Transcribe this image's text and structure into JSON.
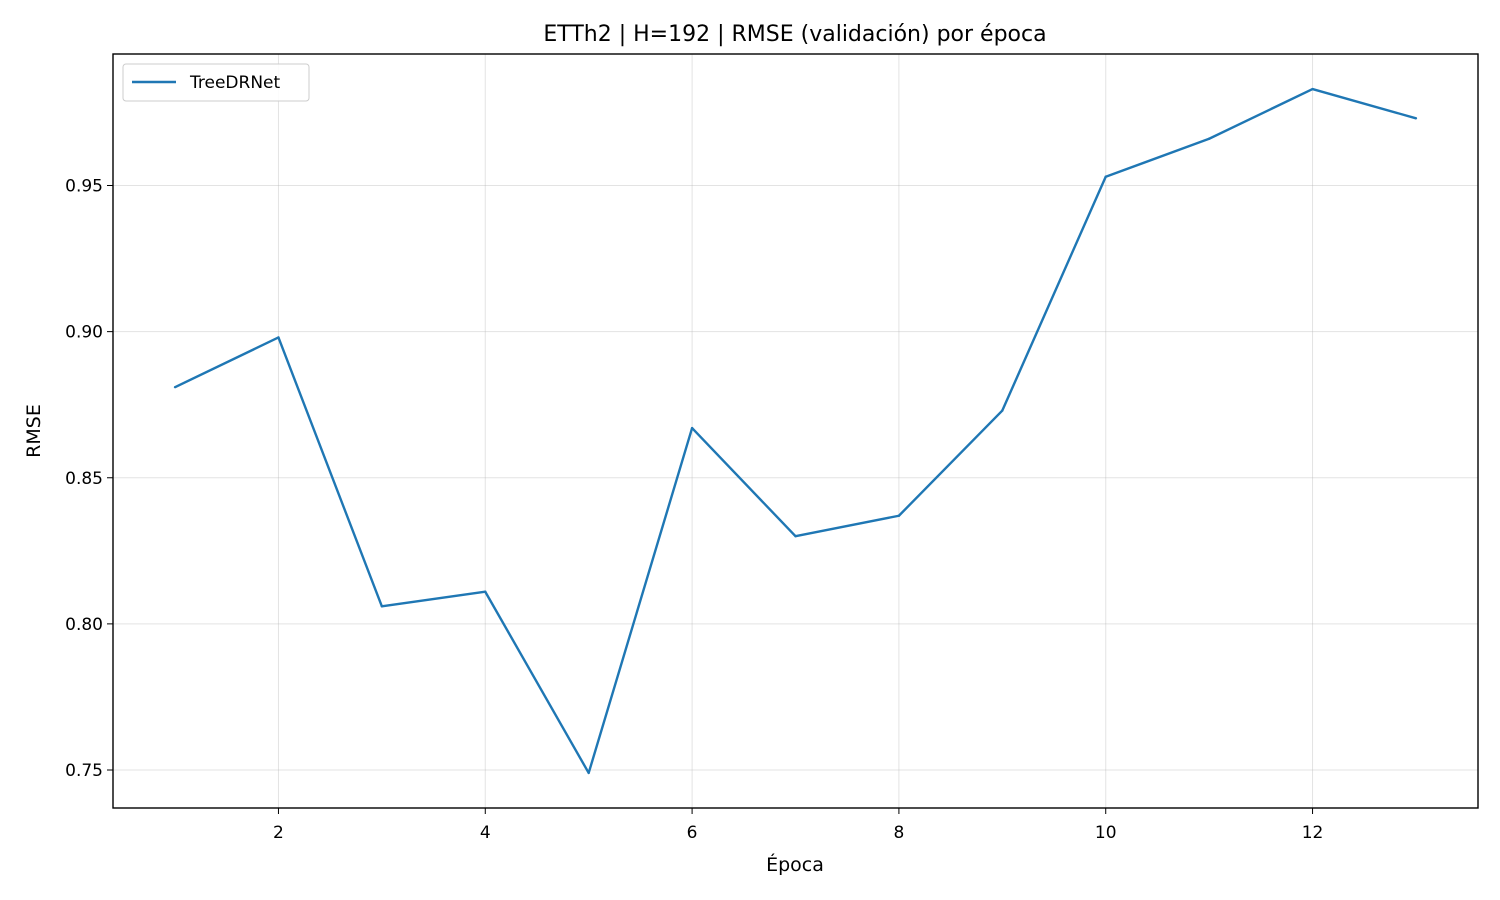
{
  "chart_data": {
    "type": "line",
    "title": "ETTh2 | H=192 | RMSE (validación) por época",
    "xlabel": "Época",
    "ylabel": "RMSE",
    "xlim": [
      0.4,
      13.6
    ],
    "ylim": [
      0.737,
      0.995
    ],
    "xticks": [
      2,
      4,
      6,
      8,
      10,
      12
    ],
    "yticks": [
      0.75,
      0.8,
      0.85,
      0.9,
      0.95
    ],
    "ytick_labels": [
      "0.75",
      "0.80",
      "0.85",
      "0.90",
      "0.95"
    ],
    "grid": true,
    "legend_position": "upper-left",
    "x": [
      1,
      2,
      3,
      4,
      5,
      6,
      7,
      8,
      9,
      10,
      11,
      12,
      13
    ],
    "series": [
      {
        "name": "TreeDRNet",
        "color": "#1f77b4",
        "values": [
          0.881,
          0.898,
          0.806,
          0.811,
          0.749,
          0.867,
          0.83,
          0.837,
          0.873,
          0.953,
          0.966,
          0.983,
          0.973
        ]
      }
    ]
  }
}
